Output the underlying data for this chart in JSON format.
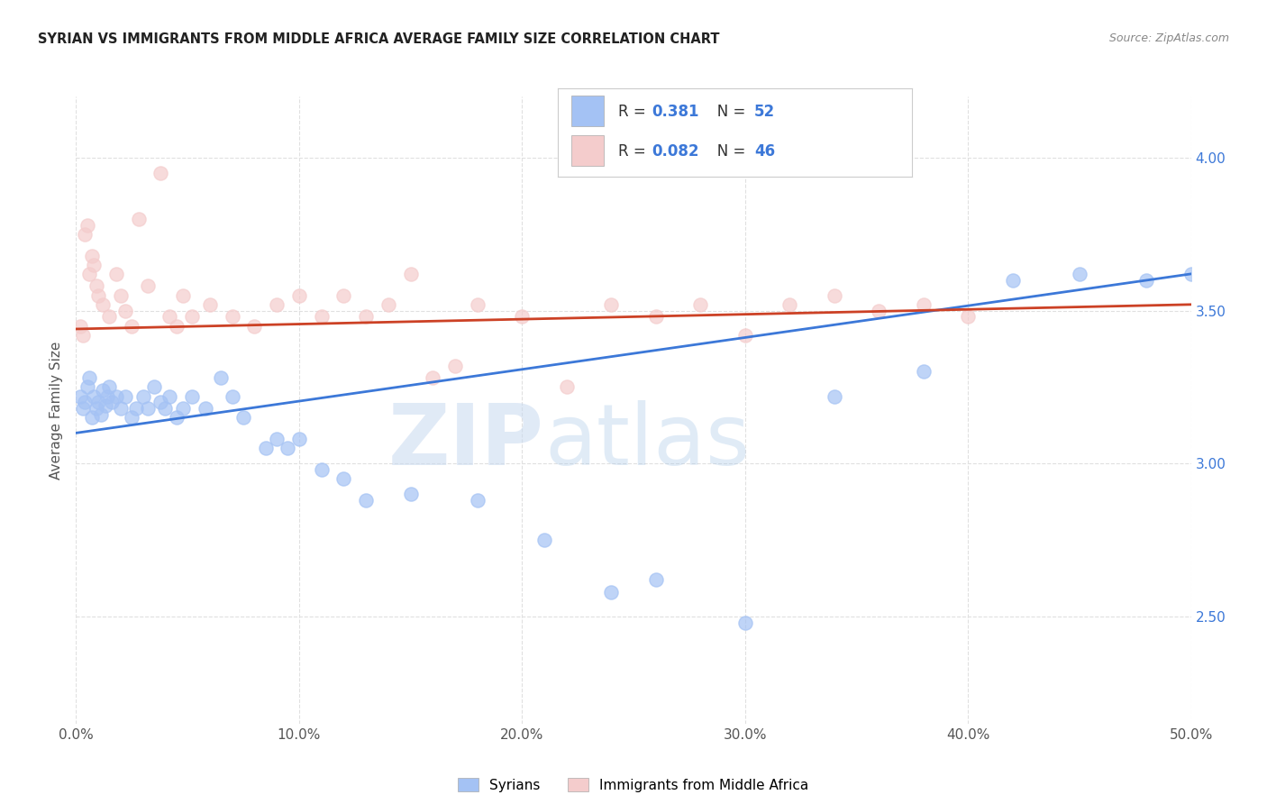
{
  "title": "SYRIAN VS IMMIGRANTS FROM MIDDLE AFRICA AVERAGE FAMILY SIZE CORRELATION CHART",
  "source": "Source: ZipAtlas.com",
  "ylabel": "Average Family Size",
  "xlabel_ticks": [
    "0.0%",
    "10.0%",
    "20.0%",
    "30.0%",
    "40.0%",
    "50.0%"
  ],
  "ylabel_ticks": [
    2.5,
    3.0,
    3.5,
    4.0
  ],
  "xlim": [
    0,
    0.5
  ],
  "ylim": [
    2.15,
    4.2
  ],
  "watermark_zip": "ZIP",
  "watermark_atlas": "atlas",
  "legend1_r": "R = ",
  "legend1_rv": "0.381",
  "legend1_n": "   N = ",
  "legend1_nv": "52",
  "legend2_r": "R = ",
  "legend2_rv": "0.082",
  "legend2_n": "   N = ",
  "legend2_nv": "46",
  "legend_bottom": "Syrians",
  "legend_bottom2": "Immigrants from Middle Africa",
  "syrian_color": "#a4c2f4",
  "africa_color": "#f4cccc",
  "syrian_line_color": "#3c78d8",
  "africa_line_color": "#cc4125",
  "value_color": "#3c78d8",
  "text_color": "#333333",
  "syrian_scatter": [
    [
      0.002,
      3.22
    ],
    [
      0.003,
      3.18
    ],
    [
      0.004,
      3.2
    ],
    [
      0.005,
      3.25
    ],
    [
      0.006,
      3.28
    ],
    [
      0.007,
      3.15
    ],
    [
      0.008,
      3.22
    ],
    [
      0.009,
      3.18
    ],
    [
      0.01,
      3.2
    ],
    [
      0.011,
      3.16
    ],
    [
      0.012,
      3.24
    ],
    [
      0.013,
      3.19
    ],
    [
      0.014,
      3.22
    ],
    [
      0.015,
      3.25
    ],
    [
      0.016,
      3.2
    ],
    [
      0.018,
      3.22
    ],
    [
      0.02,
      3.18
    ],
    [
      0.022,
      3.22
    ],
    [
      0.025,
      3.15
    ],
    [
      0.027,
      3.18
    ],
    [
      0.03,
      3.22
    ],
    [
      0.032,
      3.18
    ],
    [
      0.035,
      3.25
    ],
    [
      0.038,
      3.2
    ],
    [
      0.04,
      3.18
    ],
    [
      0.042,
      3.22
    ],
    [
      0.045,
      3.15
    ],
    [
      0.048,
      3.18
    ],
    [
      0.052,
      3.22
    ],
    [
      0.058,
      3.18
    ],
    [
      0.065,
      3.28
    ],
    [
      0.07,
      3.22
    ],
    [
      0.075,
      3.15
    ],
    [
      0.085,
      3.05
    ],
    [
      0.09,
      3.08
    ],
    [
      0.095,
      3.05
    ],
    [
      0.1,
      3.08
    ],
    [
      0.11,
      2.98
    ],
    [
      0.12,
      2.95
    ],
    [
      0.13,
      2.88
    ],
    [
      0.15,
      2.9
    ],
    [
      0.18,
      2.88
    ],
    [
      0.21,
      2.75
    ],
    [
      0.24,
      2.58
    ],
    [
      0.26,
      2.62
    ],
    [
      0.3,
      2.48
    ],
    [
      0.34,
      3.22
    ],
    [
      0.38,
      3.3
    ],
    [
      0.42,
      3.6
    ],
    [
      0.45,
      3.62
    ],
    [
      0.48,
      3.6
    ],
    [
      0.5,
      3.62
    ]
  ],
  "africa_scatter": [
    [
      0.002,
      3.45
    ],
    [
      0.003,
      3.42
    ],
    [
      0.004,
      3.75
    ],
    [
      0.005,
      3.78
    ],
    [
      0.006,
      3.62
    ],
    [
      0.007,
      3.68
    ],
    [
      0.008,
      3.65
    ],
    [
      0.009,
      3.58
    ],
    [
      0.01,
      3.55
    ],
    [
      0.012,
      3.52
    ],
    [
      0.015,
      3.48
    ],
    [
      0.018,
      3.62
    ],
    [
      0.02,
      3.55
    ],
    [
      0.022,
      3.5
    ],
    [
      0.025,
      3.45
    ],
    [
      0.028,
      3.8
    ],
    [
      0.032,
      3.58
    ],
    [
      0.038,
      3.95
    ],
    [
      0.042,
      3.48
    ],
    [
      0.045,
      3.45
    ],
    [
      0.048,
      3.55
    ],
    [
      0.052,
      3.48
    ],
    [
      0.06,
      3.52
    ],
    [
      0.07,
      3.48
    ],
    [
      0.08,
      3.45
    ],
    [
      0.09,
      3.52
    ],
    [
      0.1,
      3.55
    ],
    [
      0.11,
      3.48
    ],
    [
      0.12,
      3.55
    ],
    [
      0.13,
      3.48
    ],
    [
      0.14,
      3.52
    ],
    [
      0.15,
      3.62
    ],
    [
      0.16,
      3.28
    ],
    [
      0.17,
      3.32
    ],
    [
      0.18,
      3.52
    ],
    [
      0.2,
      3.48
    ],
    [
      0.22,
      3.25
    ],
    [
      0.24,
      3.52
    ],
    [
      0.26,
      3.48
    ],
    [
      0.28,
      3.52
    ],
    [
      0.3,
      3.42
    ],
    [
      0.32,
      3.52
    ],
    [
      0.34,
      3.55
    ],
    [
      0.36,
      3.5
    ],
    [
      0.38,
      3.52
    ],
    [
      0.4,
      3.48
    ]
  ],
  "syrian_trend_x": [
    0.0,
    0.5
  ],
  "syrian_trend_y": [
    3.1,
    3.62
  ],
  "africa_trend_x": [
    0.0,
    0.5
  ],
  "africa_trend_y": [
    3.44,
    3.52
  ],
  "background_color": "#ffffff",
  "grid_color": "#e0e0e0"
}
